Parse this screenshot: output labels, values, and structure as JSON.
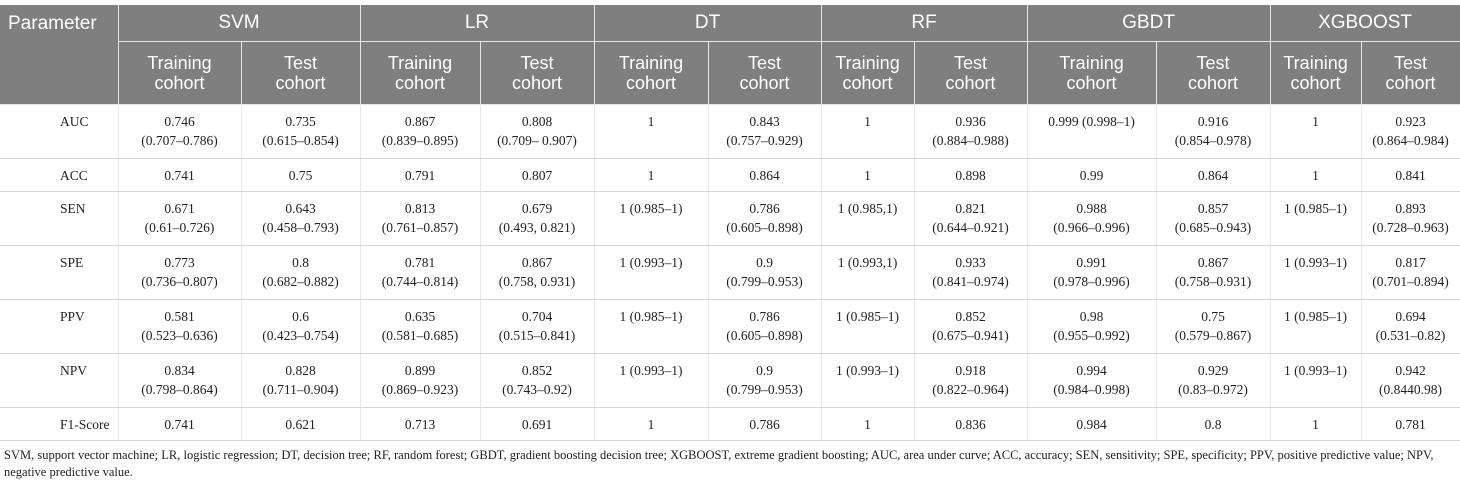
{
  "table": {
    "param_header": "Parameter",
    "models": [
      "SVM",
      "LR",
      "DT",
      "RF",
      "GBDT",
      "XGBOOST"
    ],
    "training_label_line1": "Training",
    "training_label_line2": "cohort",
    "test_label_line1": "Test",
    "test_label_line2": "cohort",
    "rows": [
      {
        "label": "AUC",
        "cells": [
          {
            "v": "0.746",
            "ci": "(0.707–0.786)"
          },
          {
            "v": "0.735",
            "ci": "(0.615–0.854)"
          },
          {
            "v": "0.867",
            "ci": "(0.839–0.895)"
          },
          {
            "v": "0.808",
            "ci": "(0.709– 0.907)"
          },
          {
            "v": "1",
            "ci": ""
          },
          {
            "v": "0.843",
            "ci": "(0.757–0.929)"
          },
          {
            "v": "1",
            "ci": ""
          },
          {
            "v": "0.936",
            "ci": "(0.884–0.988)"
          },
          {
            "v": "0.999 (0.998–1)",
            "ci": ""
          },
          {
            "v": "0.916",
            "ci": "(0.854–0.978)"
          },
          {
            "v": "1",
            "ci": ""
          },
          {
            "v": "0.923",
            "ci": "(0.864–0.984)"
          }
        ]
      },
      {
        "label": "ACC",
        "cells": [
          {
            "v": "0.741",
            "ci": ""
          },
          {
            "v": "0.75",
            "ci": ""
          },
          {
            "v": "0.791",
            "ci": ""
          },
          {
            "v": "0.807",
            "ci": ""
          },
          {
            "v": "1",
            "ci": ""
          },
          {
            "v": "0.864",
            "ci": ""
          },
          {
            "v": "1",
            "ci": ""
          },
          {
            "v": "0.898",
            "ci": ""
          },
          {
            "v": "0.99",
            "ci": ""
          },
          {
            "v": "0.864",
            "ci": ""
          },
          {
            "v": "1",
            "ci": ""
          },
          {
            "v": "0.841",
            "ci": ""
          }
        ]
      },
      {
        "label": "SEN",
        "cells": [
          {
            "v": "0.671",
            "ci": "(0.61–0.726)"
          },
          {
            "v": "0.643",
            "ci": "(0.458–0.793)"
          },
          {
            "v": "0.813",
            "ci": "(0.761–0.857)"
          },
          {
            "v": "0.679",
            "ci": "(0.493, 0.821)"
          },
          {
            "v": "1 (0.985–1)",
            "ci": ""
          },
          {
            "v": "0.786",
            "ci": "(0.605–0.898)"
          },
          {
            "v": "1 (0.985,1)",
            "ci": ""
          },
          {
            "v": "0.821",
            "ci": "(0.644–0.921)"
          },
          {
            "v": "0.988",
            "ci": "(0.966–0.996)"
          },
          {
            "v": "0.857",
            "ci": "(0.685–0.943)"
          },
          {
            "v": "1 (0.985–1)",
            "ci": ""
          },
          {
            "v": "0.893",
            "ci": "(0.728–0.963)"
          }
        ]
      },
      {
        "label": "SPE",
        "cells": [
          {
            "v": "0.773",
            "ci": "(0.736–0.807)"
          },
          {
            "v": "0.8",
            "ci": "(0.682–0.882)"
          },
          {
            "v": "0.781",
            "ci": "(0.744–0.814)"
          },
          {
            "v": "0.867",
            "ci": "(0.758, 0.931)"
          },
          {
            "v": "1 (0.993–1)",
            "ci": ""
          },
          {
            "v": "0.9",
            "ci": "(0.799–0.953)"
          },
          {
            "v": "1 (0.993,1)",
            "ci": ""
          },
          {
            "v": "0.933",
            "ci": "(0.841–0.974)"
          },
          {
            "v": "0.991",
            "ci": "(0.978–0.996)"
          },
          {
            "v": "0.867",
            "ci": "(0.758–0.931)"
          },
          {
            "v": "1 (0.993–1)",
            "ci": ""
          },
          {
            "v": "0.817",
            "ci": "(0.701–0.894)"
          }
        ]
      },
      {
        "label": "PPV",
        "cells": [
          {
            "v": "0.581",
            "ci": "(0.523–0.636)"
          },
          {
            "v": "0.6",
            "ci": "(0.423–0.754)"
          },
          {
            "v": "0.635",
            "ci": "(0.581–0.685)"
          },
          {
            "v": "0.704",
            "ci": "(0.515–0.841)"
          },
          {
            "v": "1 (0.985–1)",
            "ci": ""
          },
          {
            "v": "0.786",
            "ci": "(0.605–0.898)"
          },
          {
            "v": "1 (0.985–1)",
            "ci": ""
          },
          {
            "v": "0.852",
            "ci": "(0.675–0.941)"
          },
          {
            "v": "0.98",
            "ci": "(0.955–0.992)"
          },
          {
            "v": "0.75",
            "ci": "(0.579–0.867)"
          },
          {
            "v": "1 (0.985–1)",
            "ci": ""
          },
          {
            "v": "0.694",
            "ci": "(0.531–0.82)"
          }
        ]
      },
      {
        "label": "NPV",
        "cells": [
          {
            "v": "0.834",
            "ci": "(0.798–0.864)"
          },
          {
            "v": "0.828",
            "ci": "(0.711–0.904)"
          },
          {
            "v": "0.899",
            "ci": "(0.869–0.923)"
          },
          {
            "v": "0.852",
            "ci": "(0.743–0.92)"
          },
          {
            "v": "1 (0.993–1)",
            "ci": ""
          },
          {
            "v": "0.9",
            "ci": "(0.799–0.953)"
          },
          {
            "v": "1 (0.993–1)",
            "ci": ""
          },
          {
            "v": "0.918",
            "ci": "(0.822–0.964)"
          },
          {
            "v": "0.994",
            "ci": "(0.984–0.998)"
          },
          {
            "v": "0.929",
            "ci": "(0.83–0.972)"
          },
          {
            "v": "1 (0.993–1)",
            "ci": ""
          },
          {
            "v": "0.942",
            "ci": "(0.8440.98)"
          }
        ]
      },
      {
        "label": "F1-Score",
        "cells": [
          {
            "v": "0.741",
            "ci": ""
          },
          {
            "v": "0.621",
            "ci": ""
          },
          {
            "v": "0.713",
            "ci": ""
          },
          {
            "v": "0.691",
            "ci": ""
          },
          {
            "v": "1",
            "ci": ""
          },
          {
            "v": "0.786",
            "ci": ""
          },
          {
            "v": "1",
            "ci": ""
          },
          {
            "v": "0.836",
            "ci": ""
          },
          {
            "v": "0.984",
            "ci": ""
          },
          {
            "v": "0.8",
            "ci": ""
          },
          {
            "v": "1",
            "ci": ""
          },
          {
            "v": "0.781",
            "ci": ""
          }
        ]
      }
    ]
  },
  "footnote": "SVM, support vector machine; LR, logistic regression; DT, decision tree; RF, random forest; GBDT, gradient boosting decision tree; XGBOOST, extreme gradient boosting; AUC, area under curve; ACC, accuracy; SEN, sensitivity; SPE, specificity; PPV, positive predictive value; NPV, negative predictive value.",
  "colors": {
    "header_bg": "#7f7f7f",
    "header_text": "#ffffff"
  }
}
